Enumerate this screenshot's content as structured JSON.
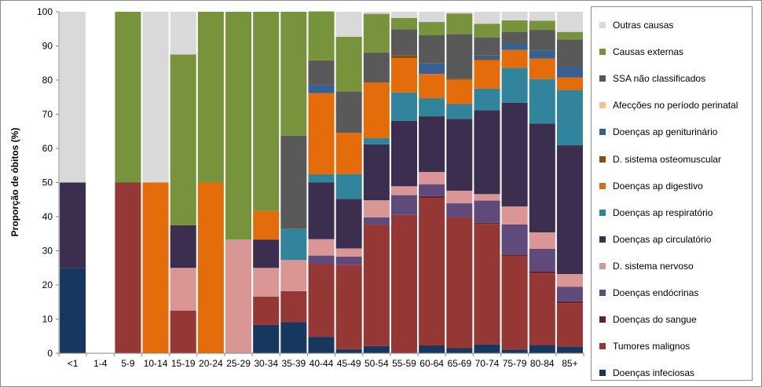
{
  "chart_data": {
    "type": "bar",
    "stacked": true,
    "title": "",
    "xlabel": "",
    "ylabel": "Proporção de óbitos (%)",
    "ylim": [
      0,
      100
    ],
    "yticks": [
      0,
      10,
      20,
      30,
      40,
      50,
      60,
      70,
      80,
      90,
      100
    ],
    "grid": false,
    "legend_position": "right",
    "categories": [
      "<1",
      "1-4",
      "5-9",
      "10-14",
      "15-19",
      "20-24",
      "25-29",
      "30-34",
      "35-39",
      "40-44",
      "45-49",
      "50-54",
      "55-59",
      "60-64",
      "65-69",
      "70-74",
      "75-79",
      "80-84",
      "85+"
    ],
    "series": [
      {
        "name": "Doenças infeciosas",
        "color": "#17375e",
        "values": [
          25,
          0,
          0,
          0,
          0,
          0,
          0,
          8.3,
          9.1,
          4.8,
          1.2,
          2.1,
          0,
          2.3,
          1.5,
          2.6,
          1.1,
          2.4,
          2.0
        ]
      },
      {
        "name": "Tumores malignos",
        "color": "#953735",
        "values": [
          0,
          0,
          50,
          0,
          12.5,
          0,
          0,
          8.3,
          9.1,
          21.4,
          24.7,
          35.5,
          40.5,
          43.2,
          38.4,
          35.3,
          27.4,
          21.0,
          12.7
        ]
      },
      {
        "name": "Doenças do sangue",
        "color": "#632523",
        "values": [
          0,
          0,
          0,
          0,
          0,
          0,
          0,
          0,
          0,
          0,
          0,
          0,
          0,
          0.5,
          0,
          0.3,
          0.4,
          0.6,
          0.5
        ]
      },
      {
        "name": "Doenças endócrinas",
        "color": "#604a7b",
        "values": [
          0,
          0,
          0,
          0,
          0,
          0,
          0,
          0,
          0,
          2.4,
          2.4,
          2.2,
          5.8,
          3.5,
          4.0,
          6.5,
          8.8,
          6.6,
          4.3
        ]
      },
      {
        "name": "D. sistema nervoso",
        "color": "#d99694",
        "values": [
          0,
          0,
          0,
          0,
          12.5,
          0,
          33.3,
          8.4,
          9.1,
          4.8,
          2.4,
          5.0,
          2.6,
          3.6,
          3.7,
          1.9,
          5.3,
          4.8,
          3.7
        ]
      },
      {
        "name": "Doenças ap circulatório",
        "color": "#3b2e4f",
        "values": [
          25,
          0,
          0,
          0,
          12.5,
          0,
          0,
          8.3,
          0,
          16.6,
          14.5,
          16.4,
          19.2,
          16.3,
          21.0,
          24.6,
          30.4,
          31.9,
          37.7
        ]
      },
      {
        "name": "Doenças ap respiratório",
        "color": "#31849b",
        "values": [
          0,
          0,
          0,
          0,
          0,
          0,
          0,
          0,
          9.1,
          2.4,
          7.3,
          1.8,
          8.3,
          5.3,
          4.4,
          6.3,
          10.2,
          13.0,
          16.2
        ]
      },
      {
        "name": "Doenças ap digestivo",
        "color": "#e46c0a",
        "values": [
          0,
          0,
          0,
          50,
          0,
          50,
          0,
          8.4,
          0,
          23.8,
          12.1,
          16.3,
          10.0,
          7.1,
          7.1,
          8.3,
          5.2,
          6.0,
          3.7
        ]
      },
      {
        "name": "D. sistema osteomuscular",
        "color": "#974706",
        "values": [
          0,
          0,
          0,
          0,
          0,
          0,
          0,
          0,
          0,
          0,
          0,
          0,
          0.8,
          0,
          0.3,
          0.4,
          0,
          0,
          0
        ]
      },
      {
        "name": "Doenças ap geniturinário",
        "color": "#366092",
        "values": [
          0,
          0,
          0,
          0,
          0,
          0,
          0,
          0,
          0,
          2.4,
          0,
          0,
          0,
          3.1,
          0,
          1.0,
          1.9,
          2.4,
          3.0
        ]
      },
      {
        "name": "Afecções no período perinatal",
        "color": "#fac090",
        "values": [
          0,
          0,
          0,
          0,
          0,
          0,
          0,
          0,
          0,
          0,
          0,
          0,
          0,
          0,
          0,
          0,
          0,
          0,
          0
        ]
      },
      {
        "name": "SSA não classificados",
        "color": "#595959",
        "values": [
          0,
          0,
          0,
          0,
          0,
          0,
          0,
          0,
          27.3,
          7.2,
          12.1,
          8.8,
          7.7,
          8.2,
          13.1,
          5.3,
          3.5,
          6.0,
          8.1
        ]
      },
      {
        "name": "Causas externas",
        "color": "#77933c",
        "values": [
          0,
          0,
          50,
          0,
          50,
          50,
          66.7,
          58.3,
          36.3,
          14.3,
          16.0,
          11.3,
          3.3,
          3.9,
          6.0,
          4.0,
          3.3,
          2.7,
          2.2
        ]
      },
      {
        "name": "Outras causas",
        "color": "#d9d9d9",
        "values": [
          50,
          0,
          0,
          50,
          12.5,
          0,
          0,
          0,
          0,
          0,
          7.3,
          0.6,
          1.8,
          3.0,
          0.5,
          3.5,
          2.5,
          2.6,
          5.9
        ]
      }
    ]
  }
}
